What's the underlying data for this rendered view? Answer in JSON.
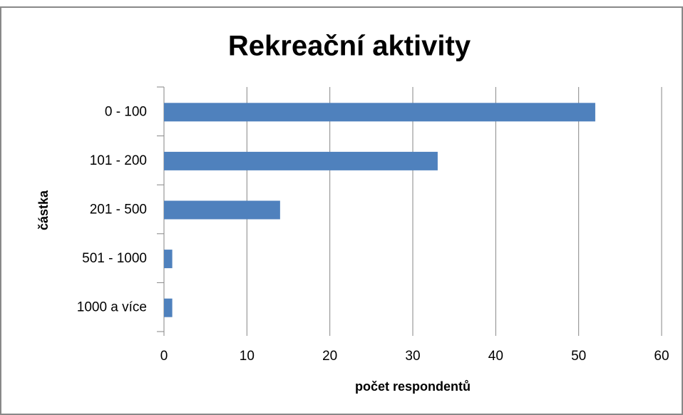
{
  "chart_data": {
    "type": "bar",
    "orientation": "horizontal",
    "title": "Rekreační aktivity",
    "x_label": "počet respondentů",
    "y_label": "částka",
    "categories": [
      "0 - 100",
      "101 - 200",
      "201 - 500",
      "501 - 1000",
      "1000 a více"
    ],
    "values": [
      52,
      33,
      14,
      1,
      1
    ],
    "color": "#4f81bd",
    "xlim": [
      0,
      60
    ],
    "xticks": [
      0,
      10,
      20,
      30,
      40,
      50,
      60
    ],
    "grid": true
  }
}
